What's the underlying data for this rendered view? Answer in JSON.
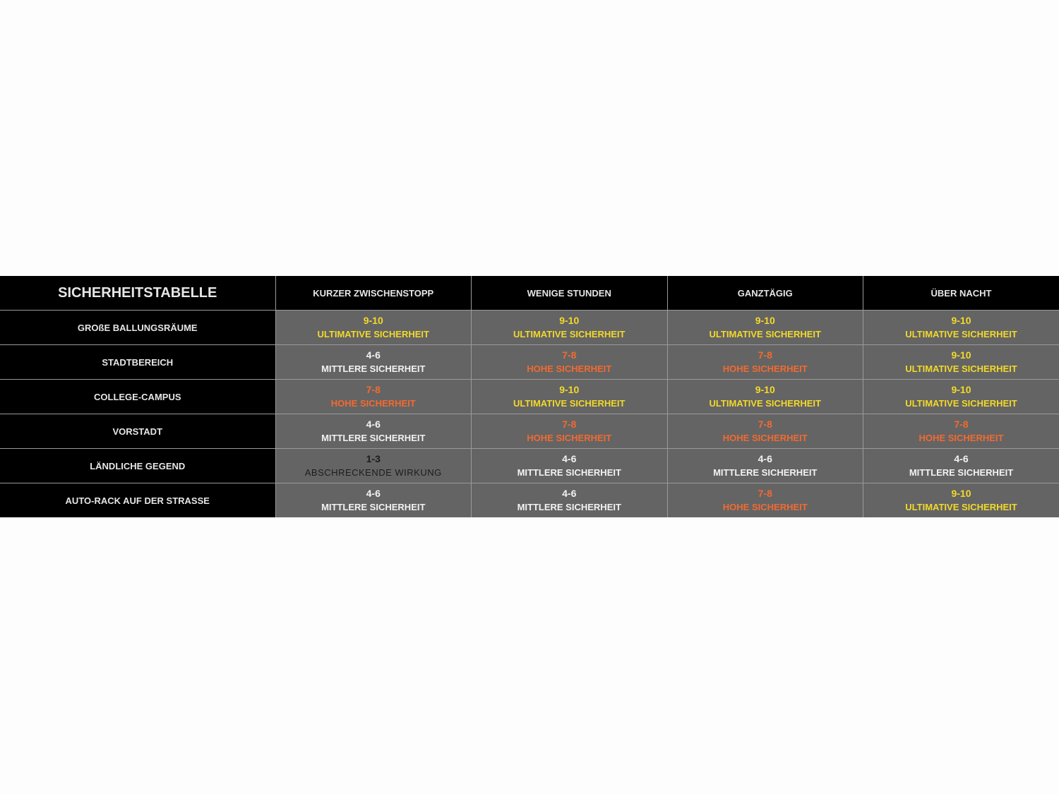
{
  "table": {
    "title": "SICHERHEITSTABELLE",
    "columns": [
      "KURZER ZWISCHENSTOPP",
      "WENIGE STUNDEN",
      "GANZTÄGIG",
      "ÜBER NACHT"
    ],
    "colors": {
      "ultimate": "#f2d92a",
      "high": "#f26a30",
      "medium": "#f2f2f2",
      "deterrent": "#1c1c1c"
    },
    "rows": [
      {
        "label": "GROßE BALLUNGSRÄUME",
        "cells": [
          {
            "score": "9-10",
            "text": "ULTIMATIVE SICHERHEIT",
            "level": "ultimate"
          },
          {
            "score": "9-10",
            "text": "ULTIMATIVE SICHERHEIT",
            "level": "ultimate"
          },
          {
            "score": "9-10",
            "text": "ULTIMATIVE SICHERHEIT",
            "level": "ultimate"
          },
          {
            "score": "9-10",
            "text": "ULTIMATIVE SICHERHEIT",
            "level": "ultimate"
          }
        ]
      },
      {
        "label": "STADTBEREICH",
        "cells": [
          {
            "score": "4-6",
            "text": "MITTLERE SICHERHEIT",
            "level": "medium"
          },
          {
            "score": "7-8",
            "text": "HOHE SICHERHEIT",
            "level": "high"
          },
          {
            "score": "7-8",
            "text": "HOHE SICHERHEIT",
            "level": "high"
          },
          {
            "score": "9-10",
            "text": "ULTIMATIVE SICHERHEIT",
            "level": "ultimate"
          }
        ]
      },
      {
        "label": "COLLEGE-CAMPUS",
        "cells": [
          {
            "score": "7-8",
            "text": "HOHE SICHERHEIT",
            "level": "high"
          },
          {
            "score": "9-10",
            "text": "ULTIMATIVE SICHERHEIT",
            "level": "ultimate"
          },
          {
            "score": "9-10",
            "text": "ULTIMATIVE SICHERHEIT",
            "level": "ultimate"
          },
          {
            "score": "9-10",
            "text": "ULTIMATIVE SICHERHEIT",
            "level": "ultimate"
          }
        ]
      },
      {
        "label": "VORSTADT",
        "cells": [
          {
            "score": "4-6",
            "text": "MITTLERE SICHERHEIT",
            "level": "medium"
          },
          {
            "score": "7-8",
            "text": "HOHE SICHERHEIT",
            "level": "high"
          },
          {
            "score": "7-8",
            "text": "HOHE SICHERHEIT",
            "level": "high"
          },
          {
            "score": "7-8",
            "text": "HOHE SICHERHEIT",
            "level": "high"
          }
        ]
      },
      {
        "label": "LÄNDLICHE GEGEND",
        "cells": [
          {
            "score": "1-3",
            "text": "ABSCHRECKENDE WIRKUNG",
            "level": "deterrent"
          },
          {
            "score": "4-6",
            "text": "MITTLERE SICHERHEIT",
            "level": "medium"
          },
          {
            "score": "4-6",
            "text": "MITTLERE SICHERHEIT",
            "level": "medium"
          },
          {
            "score": "4-6",
            "text": "MITTLERE SICHERHEIT",
            "level": "medium"
          }
        ]
      },
      {
        "label": "AUTO-RACK AUF DER STRASSE",
        "cells": [
          {
            "score": "4-6",
            "text": "MITTLERE SICHERHEIT",
            "level": "medium"
          },
          {
            "score": "4-6",
            "text": "MITTLERE SICHERHEIT",
            "level": "medium"
          },
          {
            "score": "7-8",
            "text": "HOHE SICHERHEIT",
            "level": "high"
          },
          {
            "score": "9-10",
            "text": "ULTIMATIVE SICHERHEIT",
            "level": "ultimate"
          }
        ]
      }
    ]
  }
}
